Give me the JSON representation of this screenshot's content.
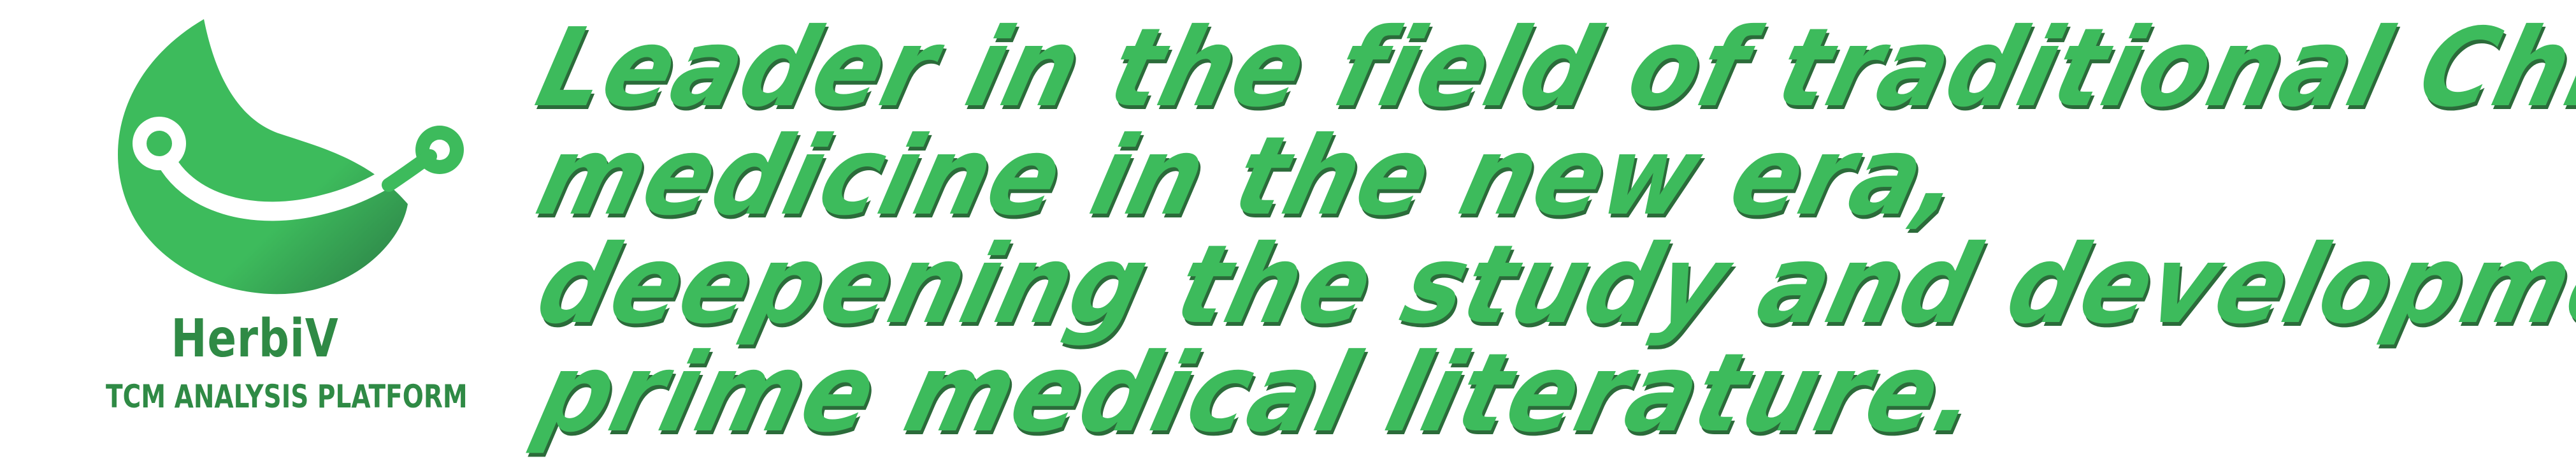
{
  "brand": {
    "name": "HerbiV",
    "tagline": "TCM ANALYSIS PLATFORM",
    "logo_icon": "leaf-with-stem-icon"
  },
  "slogan": {
    "lines": [
      "Leader in the field of traditional Chinese",
      "medicine in the new era,",
      "deepening the study and development of",
      "prime medical literature."
    ]
  },
  "colors": {
    "primary_green": "#3dbb5c",
    "dark_green": "#2f8a45",
    "shadow_green": "#2b6b3a",
    "background": "#ffffff"
  }
}
